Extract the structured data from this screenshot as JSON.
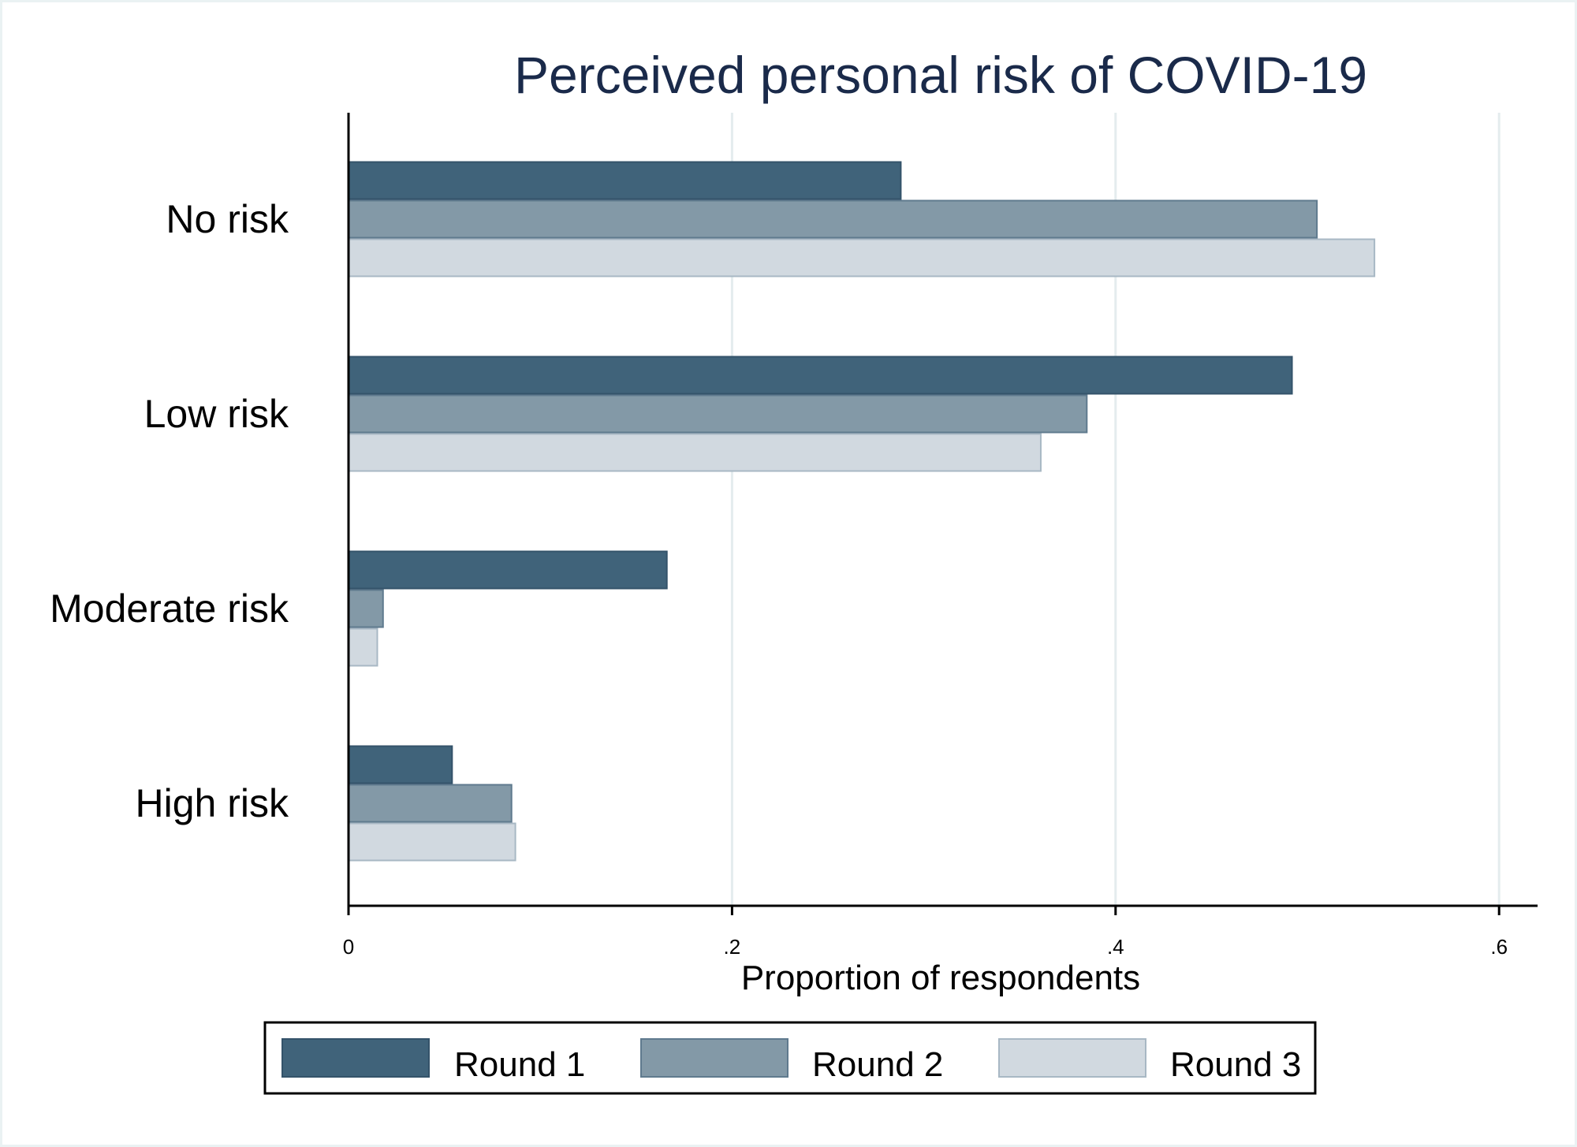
{
  "chart_data": {
    "type": "bar",
    "orientation": "horizontal",
    "title": "Perceived personal risk of COVID-19",
    "xlabel": "Proportion of respondents",
    "categories": [
      "No risk",
      "Low risk",
      "Moderate risk",
      "High risk"
    ],
    "series": [
      {
        "name": "Round 1",
        "values": [
          0.288,
          0.492,
          0.166,
          0.054
        ],
        "color": "#40637a"
      },
      {
        "name": "Round 2",
        "values": [
          0.505,
          0.385,
          0.018,
          0.085
        ],
        "color": "#8399a7"
      },
      {
        "name": "Round 3",
        "values": [
          0.535,
          0.361,
          0.015,
          0.087
        ],
        "color": "#d1d9e0"
      }
    ],
    "xlim": [
      0,
      0.62
    ],
    "xticks": [
      0,
      0.2,
      0.4,
      0.6
    ],
    "xtick_labels": [
      "0",
      ".2",
      ".4",
      ".6"
    ],
    "grid": true,
    "legend_position": "bottom"
  }
}
